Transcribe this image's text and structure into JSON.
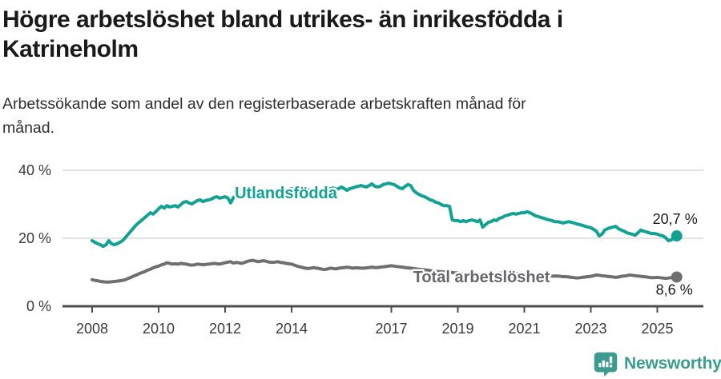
{
  "footer": {
    "brand": "Newsworthy"
  },
  "colors": {
    "teal": "#11a294",
    "gray": "#6f6f6f",
    "gray_label": "#66666b",
    "grid": "#d9d9d9",
    "axis": "#4d4d4d",
    "tick_text": "#3a3a3a",
    "value_text": "#1a1a1a",
    "logo_teal": "#3b9c8f",
    "title_text": "#1a1a1a"
  },
  "chart_data": {
    "type": "line",
    "title": "Högre arbetslöshet bland utrikes- än inrikesfödda i Katrineholm",
    "subtitle": "Arbetssökande som andel av den registerbaserade arbetskraften månad för månad.",
    "x_start_year": 2008,
    "points_per_year": 12,
    "x_end_year": 2025.58,
    "x_ticks": [
      "2008",
      "2010",
      "2012",
      "2014",
      "2017",
      "2019",
      "2021",
      "2023",
      "2025"
    ],
    "y_ticks": [
      {
        "value": 0,
        "label": "0 %"
      },
      {
        "value": 20,
        "label": "20 %"
      },
      {
        "value": 40,
        "label": "40 %"
      }
    ],
    "y_range": [
      0,
      40
    ],
    "grid": "horizontal",
    "legend": "inline-labels",
    "series": [
      {
        "name": "Utlandsfödda",
        "color": "#11a294",
        "end_value": 20.7,
        "end_label": "20,7 %",
        "values": [
          19.3,
          18.8,
          18.4,
          18.1,
          17.6,
          18.1,
          19.3,
          18.4,
          18.1,
          18.4,
          18.8,
          19.3,
          20.2,
          21.2,
          22.1,
          23.1,
          24.0,
          24.7,
          25.4,
          26.1,
          26.8,
          27.5,
          27.1,
          27.8,
          28.7,
          29.4,
          28.9,
          29.6,
          29.2,
          29.4,
          29.6,
          29.2,
          29.9,
          30.6,
          30.8,
          30.4,
          30.1,
          30.6,
          31.1,
          31.3,
          30.8,
          31.1,
          31.3,
          31.5,
          32.0,
          32.2,
          31.8,
          32.0,
          32.2,
          31.8,
          30.4,
          32.0,
          32.5,
          32.7,
          32.5,
          32.2,
          32.7,
          32.9,
          33.4,
          33.6,
          34.1,
          33.6,
          33.9,
          34.4,
          33.9,
          33.4,
          33.6,
          34.1,
          34.4,
          34.6,
          34.1,
          34.4,
          34.6,
          34.1,
          33.9,
          32.5,
          33.6,
          33.9,
          34.4,
          33.9,
          34.1,
          34.6,
          34.1,
          34.4,
          32.9,
          34.4,
          34.6,
          34.8,
          34.4,
          34.6,
          35.1,
          34.6,
          34.1,
          34.6,
          34.8,
          35.1,
          35.3,
          35.5,
          35.3,
          35.1,
          35.5,
          36.0,
          35.3,
          35.1,
          35.3,
          35.8,
          36.0,
          36.2,
          36.0,
          35.8,
          35.3,
          34.8,
          34.6,
          35.3,
          35.8,
          35.5,
          34.1,
          33.4,
          32.9,
          32.5,
          32.2,
          31.8,
          31.3,
          31.1,
          30.6,
          30.4,
          29.9,
          29.6,
          29.6,
          29.4,
          25.4,
          25.2,
          25.2,
          24.9,
          25.2,
          24.9,
          25.2,
          25.4,
          25.2,
          24.9,
          25.4,
          23.3,
          24.0,
          24.7,
          24.9,
          25.4,
          25.2,
          25.9,
          26.1,
          26.6,
          26.8,
          27.1,
          27.3,
          27.1,
          27.3,
          27.5,
          27.5,
          27.8,
          27.5,
          27.1,
          26.6,
          26.4,
          26.1,
          25.9,
          25.6,
          25.4,
          25.2,
          24.9,
          24.9,
          24.7,
          24.5,
          24.7,
          24.9,
          24.7,
          24.5,
          24.2,
          24.0,
          23.8,
          23.5,
          23.3,
          23.1,
          22.6,
          22.1,
          20.7,
          21.2,
          22.4,
          22.8,
          23.1,
          23.3,
          23.5,
          22.8,
          22.4,
          22.1,
          21.6,
          21.4,
          21.2,
          20.9,
          21.6,
          22.4,
          22.1,
          21.9,
          21.6,
          21.4,
          21.4,
          21.2,
          20.9,
          20.7,
          20.2,
          19.3,
          19.5,
          20.2,
          20.7
        ]
      },
      {
        "name": "Total arbetslöshet",
        "color": "#6f6f6f",
        "end_value": 8.6,
        "end_label": "8,6 %",
        "values": [
          7.8,
          7.6,
          7.5,
          7.3,
          7.2,
          7.1,
          7.1,
          7.2,
          7.3,
          7.4,
          7.5,
          7.6,
          7.8,
          8.2,
          8.5,
          8.9,
          9.2,
          9.6,
          9.9,
          10.2,
          10.6,
          10.9,
          11.3,
          11.6,
          11.8,
          12.2,
          12.4,
          12.8,
          12.6,
          12.4,
          12.5,
          12.4,
          12.6,
          12.5,
          12.4,
          12.2,
          12.1,
          12.2,
          12.4,
          12.3,
          12.2,
          12.3,
          12.4,
          12.5,
          12.6,
          12.5,
          12.4,
          12.6,
          12.8,
          13.0,
          13.1,
          12.7,
          12.9,
          12.8,
          12.6,
          12.9,
          13.2,
          13.4,
          13.5,
          13.3,
          13.1,
          13.3,
          13.4,
          13.2,
          13.0,
          12.9,
          13.0,
          13.1,
          12.9,
          12.8,
          12.6,
          12.5,
          12.4,
          12.1,
          11.8,
          11.6,
          11.4,
          11.2,
          11.1,
          11.2,
          11.4,
          11.2,
          11.1,
          10.9,
          10.8,
          11.0,
          11.2,
          11.1,
          11.0,
          11.2,
          11.3,
          11.4,
          11.5,
          11.4,
          11.2,
          11.3,
          11.3,
          11.2,
          11.2,
          11.3,
          11.4,
          11.5,
          11.4,
          11.4,
          11.5,
          11.6,
          11.7,
          11.8,
          11.9,
          11.8,
          11.7,
          11.6,
          11.5,
          11.4,
          11.3,
          11.2,
          11.1,
          11.0,
          10.9,
          10.8,
          10.7,
          10.6,
          10.5,
          10.4,
          10.3,
          10.2,
          10.2,
          10.1,
          10.0,
          10.0,
          9.9,
          9.8,
          9.8,
          9.7,
          9.6,
          9.6,
          9.5,
          9.5,
          9.4,
          9.4,
          9.4,
          9.4,
          9.4,
          9.4,
          9.4,
          9.5,
          9.6,
          9.7,
          9.8,
          9.8,
          9.8,
          9.7,
          9.7,
          9.6,
          9.6,
          9.5,
          9.6,
          9.5,
          9.4,
          9.3,
          9.2,
          9.2,
          9.1,
          9.1,
          9.0,
          9.0,
          8.9,
          8.9,
          8.9,
          8.8,
          8.7,
          8.7,
          8.6,
          8.5,
          8.4,
          8.3,
          8.4,
          8.5,
          8.6,
          8.7,
          8.8,
          9.0,
          9.2,
          9.1,
          9.0,
          8.9,
          8.8,
          8.7,
          8.6,
          8.5,
          8.6,
          8.8,
          8.9,
          9.0,
          9.2,
          9.1,
          9.0,
          8.9,
          8.8,
          8.7,
          8.6,
          8.5,
          8.4,
          8.4,
          8.5,
          8.4,
          8.3,
          8.2,
          8.3,
          8.4,
          8.5,
          8.6
        ]
      }
    ]
  }
}
